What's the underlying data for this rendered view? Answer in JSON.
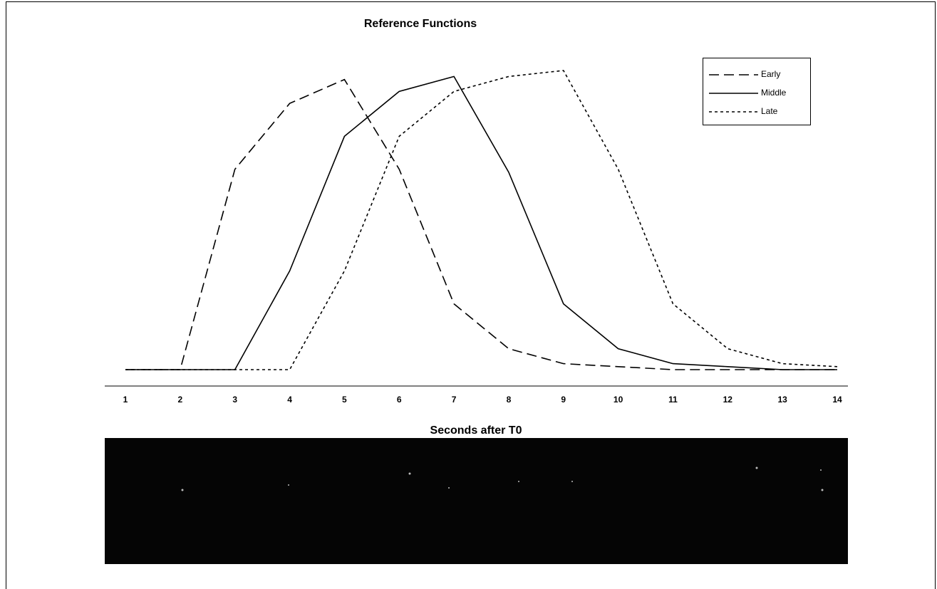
{
  "chart_data": {
    "type": "line",
    "title": "Reference Functions",
    "x_label": "Seconds after T0",
    "categories": [
      1,
      2,
      3,
      4,
      5,
      6,
      7,
      8,
      9,
      10,
      11,
      12,
      13,
      14
    ],
    "series": [
      {
        "name": "Early",
        "color": "#000000",
        "style": "dashed",
        "values": [
          0,
          0,
          0.67,
          0.89,
          0.97,
          0.67,
          0.22,
          0.07,
          0.02,
          0.01,
          0,
          0,
          0,
          0
        ]
      },
      {
        "name": "Middle",
        "color": "#000000",
        "style": "solid",
        "values": [
          0,
          0,
          0,
          0.33,
          0.78,
          0.93,
          0.98,
          0.66,
          0.22,
          0.07,
          0.02,
          0.01,
          0,
          0
        ]
      },
      {
        "name": "Late",
        "color": "#000000",
        "style": "dotted",
        "values": [
          0,
          0,
          0,
          0,
          0.33,
          0.78,
          0.93,
          0.98,
          1.0,
          0.67,
          0.22,
          0.07,
          0.02,
          0.01
        ]
      }
    ],
    "legend": "top-right"
  }
}
